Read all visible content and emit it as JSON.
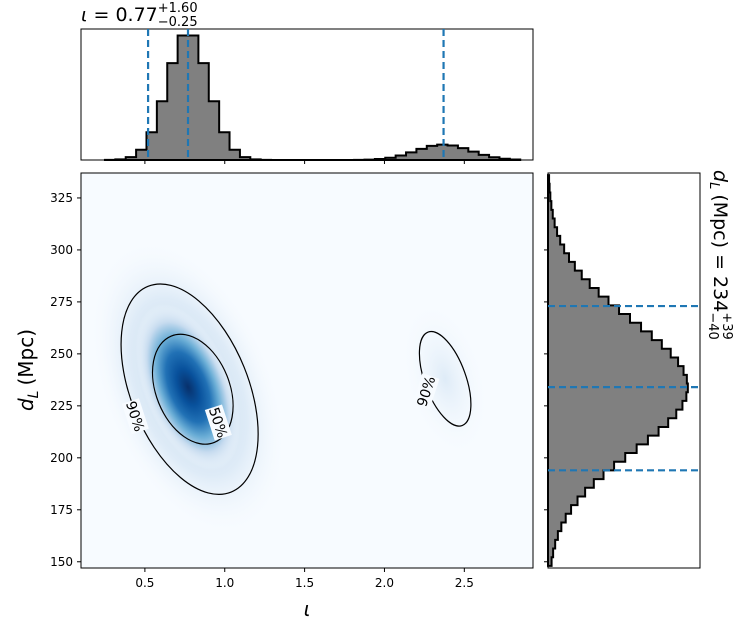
{
  "chart_data": {
    "type": "heatmap",
    "main": {
      "xlabel": "ι",
      "ylabel_var": "d",
      "ylabel_sub": "L",
      "ylabel_unit": "(Mpc)",
      "xlim": [
        0.1,
        2.93
      ],
      "ylim": [
        147,
        337
      ],
      "x_ticks": [
        0.5,
        1.0,
        1.5,
        2.0,
        2.5
      ],
      "x_tick_labels": [
        "0.5",
        "1.0",
        "1.5",
        "2.0",
        "2.5"
      ],
      "y_ticks": [
        150,
        175,
        200,
        225,
        250,
        275,
        300,
        325
      ],
      "y_tick_labels": [
        "150",
        "175",
        "200",
        "225",
        "250",
        "275",
        "300",
        "325"
      ],
      "colormap": "Blues",
      "density_peaks": [
        {
          "x": 0.77,
          "y": 234,
          "weight": 1.0
        },
        {
          "x": 2.38,
          "y": 238,
          "weight": 0.05
        }
      ],
      "contours": [
        {
          "level": "50%",
          "label": "50%",
          "x_center": 0.8,
          "y_center": 233,
          "x_halfwidth": 0.25,
          "y_halfwidth": 30
        },
        {
          "level": "90%",
          "label": "90%",
          "x_center": 0.78,
          "y_center": 233,
          "x_halfwidth": 0.4,
          "y_halfwidth": 58
        },
        {
          "level": "90%",
          "label": "90%",
          "x_center": 2.38,
          "y_center": 238,
          "x_halfwidth": 0.14,
          "y_halfwidth": 26
        }
      ]
    },
    "top_marginal": {
      "parameter": "ι",
      "title_symbol": "ι",
      "title_median": "0.77",
      "title_plus": "+1.60",
      "title_minus": "−0.25",
      "median": 0.77,
      "lower": 0.52,
      "upper": 2.37,
      "hist_color": "#808080",
      "line_color": "#1f77b4"
    },
    "right_marginal": {
      "parameter": "d_L",
      "title_var": "d",
      "title_sub": "L",
      "title_unit": "(Mpc)",
      "title_median": "234",
      "title_plus": "+39",
      "title_minus": "−40",
      "median": 234,
      "lower": 194,
      "upper": 273,
      "hist_color": "#808080",
      "line_color": "#1f77b4"
    }
  }
}
